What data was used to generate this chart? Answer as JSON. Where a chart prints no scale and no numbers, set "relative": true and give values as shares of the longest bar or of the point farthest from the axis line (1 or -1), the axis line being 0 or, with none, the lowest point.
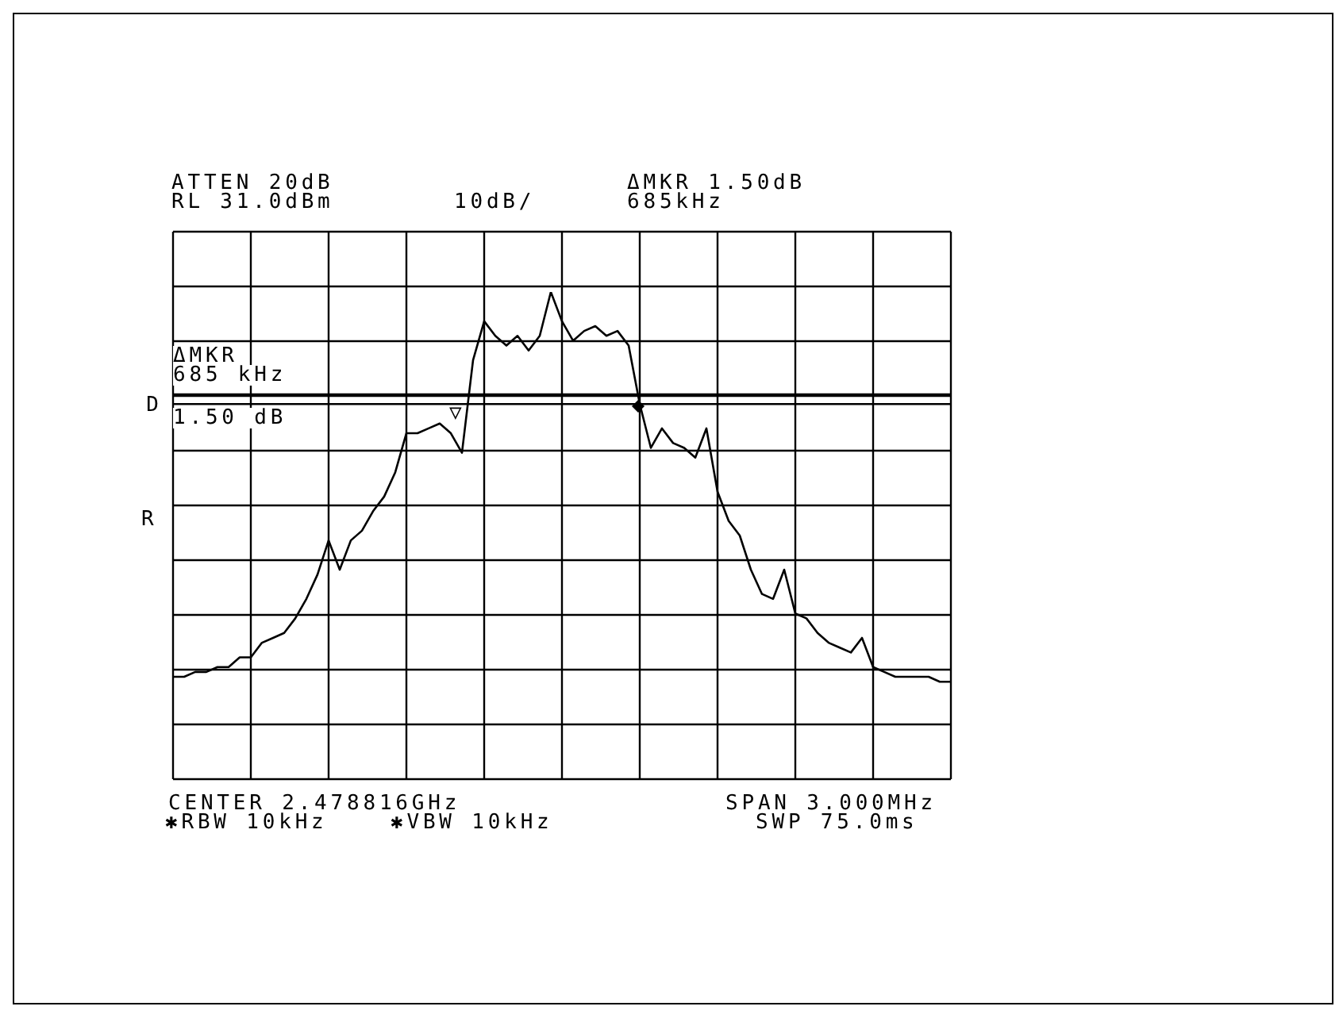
{
  "chart_data": {
    "type": "line",
    "relative": true,
    "grid": true,
    "categories": [
      null,
      null,
      null,
      null,
      null,
      null,
      null,
      null,
      null,
      null,
      null,
      null,
      null,
      null,
      null,
      null,
      null,
      null,
      null,
      null,
      null,
      null,
      null,
      null,
      null,
      null,
      null,
      null,
      null,
      null,
      null,
      null,
      null,
      null,
      null,
      null,
      null,
      null,
      null,
      null,
      null,
      null,
      null,
      null,
      null,
      null,
      null,
      null,
      null,
      null,
      null,
      null,
      null,
      null,
      null,
      null,
      null,
      null,
      null,
      null,
      null,
      null,
      null,
      null,
      null,
      null,
      null,
      null,
      null,
      null,
      null
    ],
    "series": [
      {
        "color": "#000000",
        "values": [
          0.21,
          0.21,
          0.22,
          0.22,
          0.23,
          0.23,
          0.25,
          0.25,
          0.28,
          0.29,
          0.3,
          0.33,
          0.37,
          0.42,
          0.49,
          0.43,
          0.49,
          0.51,
          0.55,
          0.58,
          0.63,
          0.71,
          0.71,
          0.72,
          0.73,
          0.71,
          0.67,
          0.86,
          0.94,
          0.91,
          0.89,
          0.91,
          0.88,
          0.91,
          1.0,
          0.94,
          0.9,
          0.92,
          0.93,
          0.91,
          0.92,
          0.89,
          0.77,
          0.68,
          0.72,
          0.69,
          0.68,
          0.66,
          0.72,
          0.59,
          0.53,
          0.5,
          0.43,
          0.38,
          0.37,
          0.43,
          0.34,
          0.33,
          0.3,
          0.28,
          0.27,
          0.26,
          0.29,
          0.23,
          0.22,
          0.21,
          0.21,
          0.21,
          0.21,
          0.2,
          0.2
        ]
      }
    ],
    "ref_lines": [
      {
        "axis": "y",
        "value": 0.79,
        "color": "#000000"
      },
      {
        "axis": "y",
        "value": 0.77,
        "label": "D",
        "color": "#000000"
      }
    ],
    "annotations": [
      "ATTEN 20dB",
      "RL 31.0dBm",
      "10dB/",
      "ΔMKR 1.50dB",
      "685kHz",
      "ΔMKR",
      "685 kHz",
      "1.50 dB",
      "R",
      "CENTER 2.478816GHz",
      "SPAN 3.000MHz",
      "✱RBW 10kHz",
      "✱VBW 10kHz",
      "SWP 75.0ms",
      "▽"
    ]
  }
}
